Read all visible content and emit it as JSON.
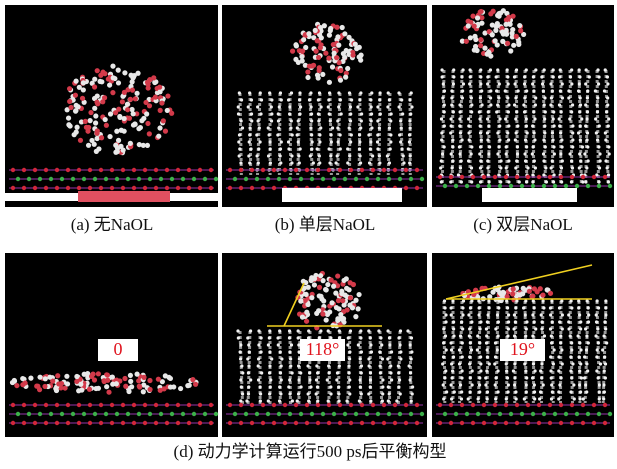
{
  "panels": [
    {
      "caption": "(a) 无NaOL"
    },
    {
      "caption": "(b) 单层NaOL"
    },
    {
      "caption": "(c) 双层NaOL"
    }
  ],
  "bottom": {
    "caption": "(d) 动力学计算运行500 ps后平衡构型",
    "angles": [
      "0",
      "118°",
      "19°"
    ]
  }
}
